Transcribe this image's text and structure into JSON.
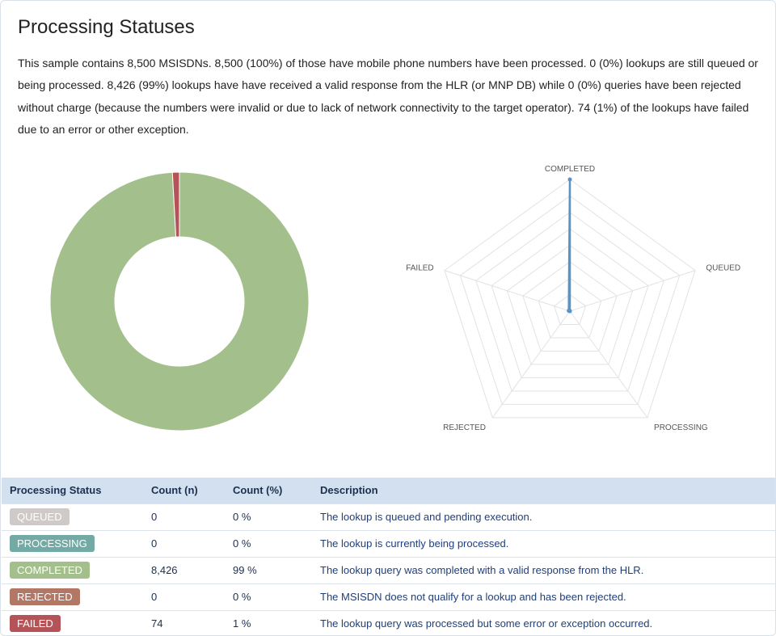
{
  "page": {
    "title": "Processing Statuses",
    "summary": "This sample contains 8,500 MSISDNs. 8,500 (100%) of those have mobile phone numbers have been processed. 0 (0%) lookups are still queued or being processed. 8,426 (99%) lookups have have received a valid response from the HLR (or MNP DB) while 0 (0%) queries have been rejected without charge (because the numbers were invalid or due to lack of network connectivity to the target operator). 74 (1%) of the lookups have failed due to an error or other exception."
  },
  "chart_data": [
    {
      "type": "pie",
      "donut": true,
      "labels": [
        "COMPLETED",
        "FAILED",
        "QUEUED",
        "PROCESSING",
        "REJECTED"
      ],
      "values": [
        8426,
        74,
        0,
        0,
        0
      ],
      "colors": [
        "#a3bf8b",
        "#b55458",
        "#cfcac7",
        "#73aaa6",
        "#b37766"
      ]
    },
    {
      "type": "radar",
      "axes": [
        "COMPLETED",
        "QUEUED",
        "PROCESSING",
        "REJECTED",
        "FAILED"
      ],
      "values": [
        8426,
        0,
        0,
        0,
        74
      ],
      "max": 8426,
      "rings": 8,
      "color": "#5b93c7"
    }
  ],
  "table": {
    "headers": [
      "Processing Status",
      "Count (n)",
      "Count (%)",
      "Description"
    ],
    "rows": [
      {
        "status": "QUEUED",
        "color": "#cfcac7",
        "count": "0",
        "pct": "0 %",
        "desc": "The lookup is queued and pending execution."
      },
      {
        "status": "PROCESSING",
        "color": "#73aaa6",
        "count": "0",
        "pct": "0 %",
        "desc": "The lookup is currently being processed."
      },
      {
        "status": "COMPLETED",
        "color": "#a3bf8b",
        "count": "8,426",
        "pct": "99 %",
        "desc": "The lookup query was completed with a valid response from the HLR."
      },
      {
        "status": "REJECTED",
        "color": "#b37766",
        "count": "0",
        "pct": "0 %",
        "desc": "The MSISDN does not qualify for a lookup and has been rejected."
      },
      {
        "status": "FAILED",
        "color": "#b55458",
        "count": "74",
        "pct": "1 %",
        "desc": "The lookup query was processed but some error or exception occurred."
      }
    ]
  }
}
